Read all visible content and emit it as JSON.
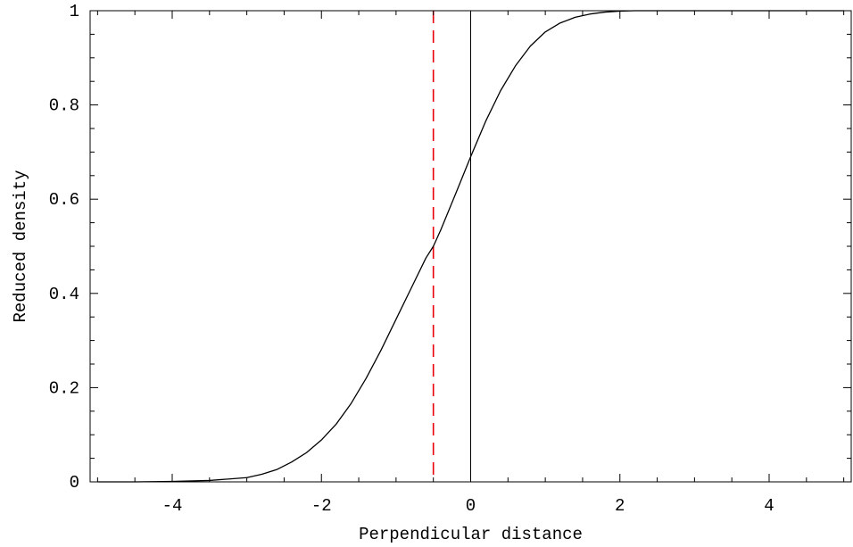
{
  "chart_data": {
    "type": "line",
    "title": "",
    "xlabel": "Perpendicular distance",
    "ylabel": "Reduced density",
    "xlim": [
      -5.1,
      5.1
    ],
    "ylim": [
      0,
      1
    ],
    "x_ticks": [
      -4,
      -2,
      0,
      2,
      4
    ],
    "x_tick_labels": [
      "-4",
      "-2",
      "0",
      "2",
      "4"
    ],
    "y_ticks": [
      0,
      0.2,
      0.4,
      0.6,
      0.8,
      1
    ],
    "y_tick_labels": [
      "0",
      "0.2",
      "0.4",
      "0.6",
      "0.8",
      "1"
    ],
    "grid": false,
    "legend": "none",
    "series": [
      {
        "color": "#000000",
        "style": "solid",
        "x": [
          -5.0,
          -4.5,
          -4.0,
          -3.5,
          -3.0,
          -2.8,
          -2.6,
          -2.4,
          -2.2,
          -2.0,
          -1.8,
          -1.6,
          -1.4,
          -1.2,
          -1.0,
          -0.8,
          -0.6,
          -0.5,
          -0.4,
          -0.2,
          0.0,
          0.2,
          0.4,
          0.6,
          0.8,
          1.0,
          1.2,
          1.4,
          1.6,
          1.8,
          2.0,
          2.2,
          2.4,
          2.6,
          3.0,
          3.5,
          4.0,
          4.5,
          5.0
        ],
        "y": [
          0.0,
          0.0,
          0.001,
          0.003,
          0.009,
          0.016,
          0.026,
          0.042,
          0.062,
          0.089,
          0.123,
          0.167,
          0.22,
          0.28,
          0.345,
          0.41,
          0.475,
          0.5,
          0.535,
          0.612,
          0.69,
          0.765,
          0.83,
          0.883,
          0.925,
          0.955,
          0.974,
          0.986,
          0.993,
          0.997,
          0.999,
          1.0,
          1.0,
          1.0,
          1.0,
          1.0,
          1.0,
          1.0,
          1.0
        ]
      }
    ],
    "reference_lines": [
      {
        "orientation": "vertical",
        "x": 0,
        "color": "#000000",
        "style": "solid"
      },
      {
        "orientation": "vertical",
        "x": -0.5,
        "color": "#e8000b",
        "style": "dashed"
      }
    ]
  }
}
